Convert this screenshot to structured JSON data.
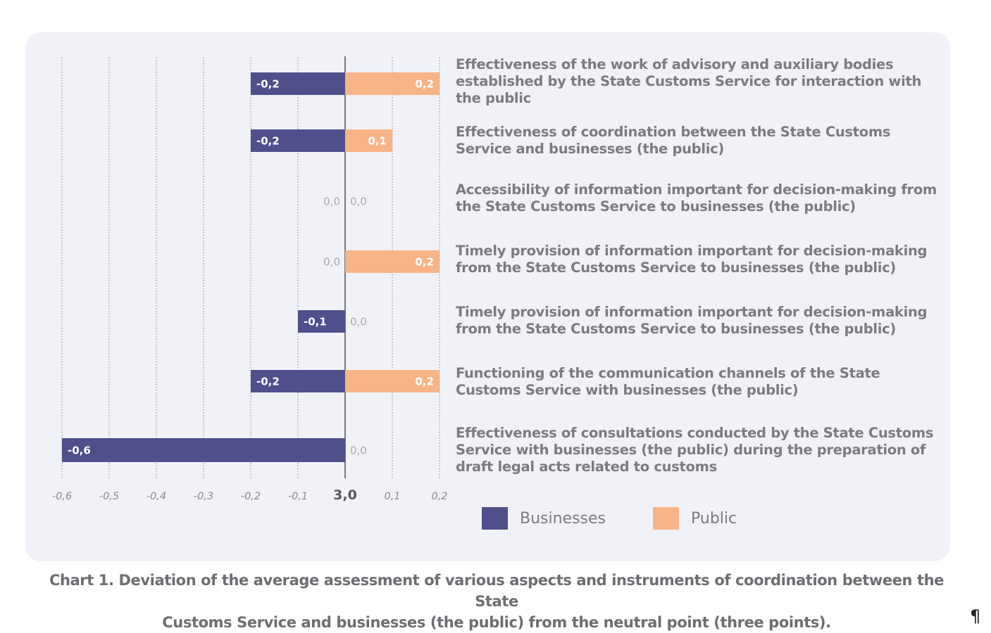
{
  "chart_data": {
    "type": "bar",
    "orientation": "horizontal-diverging",
    "neutral_point_label": "3,0",
    "x_ticks": [
      "-0,6",
      "-0,5",
      "-0,4",
      "-0,3",
      "-0,2",
      "-0,1",
      "3,0",
      "0,1",
      "0,2"
    ],
    "xlim": [
      -0.6,
      0.2
    ],
    "categories": [
      "Effectiveness of the work of advisory and auxiliary bodies established by the State Customs Service for interaction with the public",
      "Effectiveness of coordination between the State Customs Service and businesses (the public)",
      "Accessibility of information important for decision-making from the State Customs Service to businesses (the public)",
      "Timely provision of information important for decision-making from the State Customs Service to businesses (the public)",
      "Timely provision of information important for decision-making from the State Customs Service to businesses (the public)",
      "Functioning of the communication channels of the State Customs Service with businesses (the public)",
      "Effectiveness of consultations conducted by the State Customs Service with businesses (the public) during the preparation of draft legal acts related to customs"
    ],
    "series": [
      {
        "name": "Businesses",
        "color": "#4f4f8c",
        "values": [
          -0.2,
          -0.2,
          0.0,
          0.0,
          -0.1,
          -0.2,
          -0.6
        ],
        "labels": [
          "-0,2",
          "-0,2",
          "0,0",
          "0,0",
          "-0,1",
          "-0,2",
          "-0,6"
        ]
      },
      {
        "name": "Public",
        "color": "#f8b486",
        "values": [
          0.2,
          0.1,
          0.0,
          0.2,
          0.0,
          0.2,
          0.0
        ],
        "labels": [
          "0,2",
          "0,1",
          "0,0",
          "0,2",
          "0,0",
          "0,2",
          "0,0"
        ]
      }
    ],
    "legend": [
      "Businesses",
      "Public"
    ],
    "legend_position": "bottom-right",
    "grid": true
  },
  "caption": {
    "line1": "Chart 1. Deviation of the average assessment of various aspects and instruments of coordination between the State",
    "line2": "Customs Service and businesses (the public) from the neutral point (three points)."
  },
  "pilcrow": "¶",
  "colors": {
    "zero_label": "#a8a8ad",
    "bar_label": "#ffffff",
    "tick": "#8a8a90",
    "axis": "#6b6b6f"
  }
}
